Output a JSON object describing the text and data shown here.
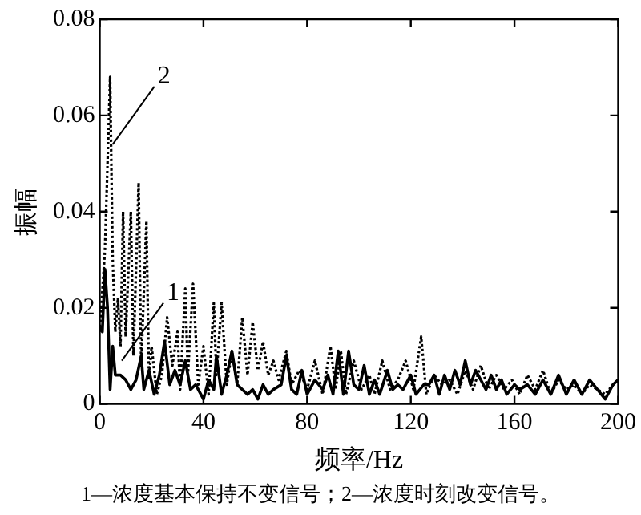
{
  "chart_data": {
    "type": "line",
    "xlabel": "频率/Hz",
    "ylabel": "振幅",
    "xlim": [
      0,
      200
    ],
    "xticks": [
      0,
      40,
      80,
      120,
      160,
      200
    ],
    "ylim": [
      0,
      0.08
    ],
    "yticks": [
      0,
      0.02,
      0.04,
      0.06,
      0.08
    ],
    "grid": false,
    "legend": false,
    "marker": "none",
    "series": [
      {
        "color": "#000000",
        "line_style": "solid",
        "x": [
          0,
          1,
          2,
          3,
          4,
          5,
          6,
          8,
          10,
          12,
          14,
          16,
          17,
          19,
          21,
          23,
          25,
          27,
          29,
          31,
          33,
          35,
          37,
          40,
          42,
          44,
          45,
          47,
          49,
          51,
          53,
          55,
          57,
          59,
          61,
          63,
          65,
          67,
          70,
          72,
          74,
          76,
          78,
          80,
          83,
          86,
          88,
          90,
          92,
          94,
          96,
          98,
          100,
          102,
          104,
          106,
          108,
          111,
          113,
          115,
          117,
          120,
          122,
          125,
          127,
          129,
          131,
          133,
          135,
          137,
          139,
          141,
          143,
          145,
          147,
          149,
          151,
          153,
          155,
          157,
          160,
          162,
          165,
          168,
          171,
          174,
          177,
          180,
          183,
          186,
          189,
          192,
          195,
          198,
          200
        ],
        "values": [
          0.016,
          0.015,
          0.028,
          0.02,
          0.003,
          0.012,
          0.006,
          0.006,
          0.005,
          0.003,
          0.005,
          0.01,
          0.003,
          0.007,
          0.002,
          0.006,
          0.013,
          0.004,
          0.007,
          0.004,
          0.009,
          0.003,
          0.004,
          0.001,
          0.005,
          0.003,
          0.01,
          0.002,
          0.006,
          0.011,
          0.004,
          0.003,
          0.002,
          0.003,
          0.001,
          0.004,
          0.002,
          0.003,
          0.004,
          0.01,
          0.003,
          0.002,
          0.007,
          0.002,
          0.005,
          0.003,
          0.006,
          0.002,
          0.011,
          0.002,
          0.011,
          0.004,
          0.003,
          0.008,
          0.002,
          0.005,
          0.002,
          0.007,
          0.003,
          0.004,
          0.003,
          0.006,
          0.002,
          0.004,
          0.004,
          0.006,
          0.002,
          0.006,
          0.003,
          0.007,
          0.004,
          0.009,
          0.004,
          0.007,
          0.005,
          0.003,
          0.006,
          0.003,
          0.005,
          0.002,
          0.004,
          0.003,
          0.004,
          0.002,
          0.005,
          0.002,
          0.006,
          0.002,
          0.005,
          0.002,
          0.005,
          0.003,
          0.001,
          0.004,
          0.005
        ]
      },
      {
        "color": "#000000",
        "line_style": "dotted",
        "x": [
          0,
          2,
          4,
          5,
          6,
          7,
          8,
          9,
          10,
          12,
          13,
          15,
          16,
          18,
          19,
          20,
          22,
          24,
          26,
          28,
          30,
          31,
          33,
          34,
          36,
          38,
          40,
          42,
          44,
          45,
          47,
          49,
          51,
          53,
          55,
          57,
          59,
          61,
          63,
          65,
          67,
          69,
          72,
          74,
          77,
          80,
          83,
          86,
          89,
          91,
          93,
          95,
          98,
          101,
          104,
          106,
          109,
          112,
          115,
          118,
          121,
          124,
          126,
          129,
          132,
          135,
          138,
          141,
          144,
          147,
          150,
          153,
          156,
          159,
          162,
          165,
          168,
          171,
          174,
          177,
          180,
          183,
          186,
          189,
          192,
          195,
          198,
          200
        ],
        "values": [
          0.015,
          0.032,
          0.068,
          0.03,
          0.015,
          0.022,
          0.012,
          0.04,
          0.014,
          0.04,
          0.01,
          0.046,
          0.008,
          0.038,
          0.005,
          0.012,
          0.002,
          0.006,
          0.018,
          0.008,
          0.015,
          0.003,
          0.024,
          0.006,
          0.025,
          0.004,
          0.012,
          0.002,
          0.021,
          0.006,
          0.021,
          0.004,
          0.011,
          0.004,
          0.018,
          0.006,
          0.017,
          0.007,
          0.013,
          0.006,
          0.009,
          0.005,
          0.011,
          0.004,
          0.007,
          0.003,
          0.009,
          0.002,
          0.012,
          0.003,
          0.011,
          0.002,
          0.009,
          0.003,
          0.006,
          0.002,
          0.009,
          0.003,
          0.005,
          0.009,
          0.003,
          0.014,
          0.002,
          0.006,
          0.004,
          0.005,
          0.002,
          0.007,
          0.003,
          0.008,
          0.003,
          0.006,
          0.003,
          0.005,
          0.002,
          0.006,
          0.003,
          0.007,
          0.002,
          0.005,
          0.003,
          0.004,
          0.002,
          0.004,
          0.003,
          0.002,
          0.004,
          0.005
        ]
      }
    ],
    "annotations": [
      {
        "text": "2",
        "x": 5,
        "y": 0.054
      },
      {
        "text": "1",
        "x": 8.5,
        "y": 0.009
      },
      "1—浓度基本保持不变信号；2—浓度时刻改变信号。"
    ]
  }
}
